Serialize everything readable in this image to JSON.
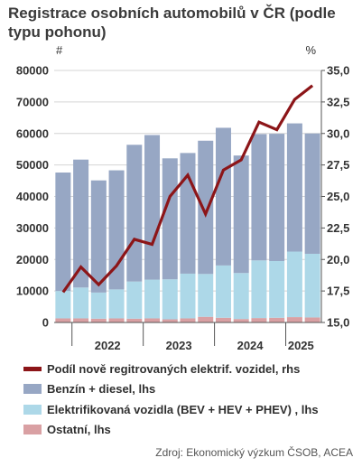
{
  "chart_data": {
    "type": "bar",
    "stacked": true,
    "title": "Registrace osobních automobilů v ČR (podle typu pohonu)",
    "left_axis": {
      "unit": "#",
      "ylim": [
        0,
        80000
      ],
      "ticks": [
        "0",
        "10000",
        "20000",
        "30000",
        "40000",
        "50000",
        "60000",
        "70000",
        "80000"
      ]
    },
    "right_axis": {
      "unit": "%",
      "ylim": [
        15.0,
        35.0
      ],
      "ticks": [
        "15,0",
        "17,5",
        "20,0",
        "22,5",
        "25,0",
        "27,5",
        "30,0",
        "32,5",
        "35,0"
      ]
    },
    "year_labels": [
      "2022",
      "2023",
      "2024",
      "2025"
    ],
    "quarters": 15,
    "series": [
      {
        "name": "Ostatní, lhs",
        "color": "#d9a0a3",
        "axis": "left",
        "values": [
          1300,
          1300,
          1200,
          1300,
          1200,
          1300,
          1000,
          1300,
          1800,
          1500,
          1100,
          1400,
          1500,
          1700,
          1600
        ]
      },
      {
        "name": "Elektrifikovaná vozidla (BEV + HEV + PHEV) , lhs",
        "color": "#add8e8",
        "axis": "left",
        "values": [
          8700,
          9800,
          8300,
          9200,
          11800,
          12300,
          12700,
          14200,
          13600,
          16600,
          14600,
          18300,
          18000,
          20800,
          20200
        ]
      },
      {
        "name": "Benzín + diesel, lhs",
        "color": "#97a7c4",
        "axis": "left",
        "values": [
          37600,
          40600,
          35600,
          37800,
          43400,
          45900,
          38400,
          38300,
          42300,
          43700,
          37300,
          40100,
          40400,
          40700,
          38200
        ]
      },
      {
        "name": "Podíl nově regitrovaných elektrif. vozidel, rhs",
        "color": "#8c1518",
        "axis": "right",
        "type": "line",
        "values": [
          17.4,
          19.4,
          18.0,
          19.5,
          21.6,
          21.2,
          25.0,
          26.7,
          23.6,
          27.1,
          27.9,
          30.9,
          30.3,
          32.7,
          33.8
        ]
      }
    ],
    "legend_order": [
      "Podíl nově regitrovaných elektrif. vozidel, rhs",
      "Benzín + diesel, lhs",
      "Elektrifikovaná vozidla (BEV + HEV + PHEV) , lhs",
      "Ostatní, lhs"
    ],
    "grid": true,
    "legend_position": "bottom"
  },
  "source": "Zdroj: Ekonomický výzkum ČSOB, ACEA"
}
